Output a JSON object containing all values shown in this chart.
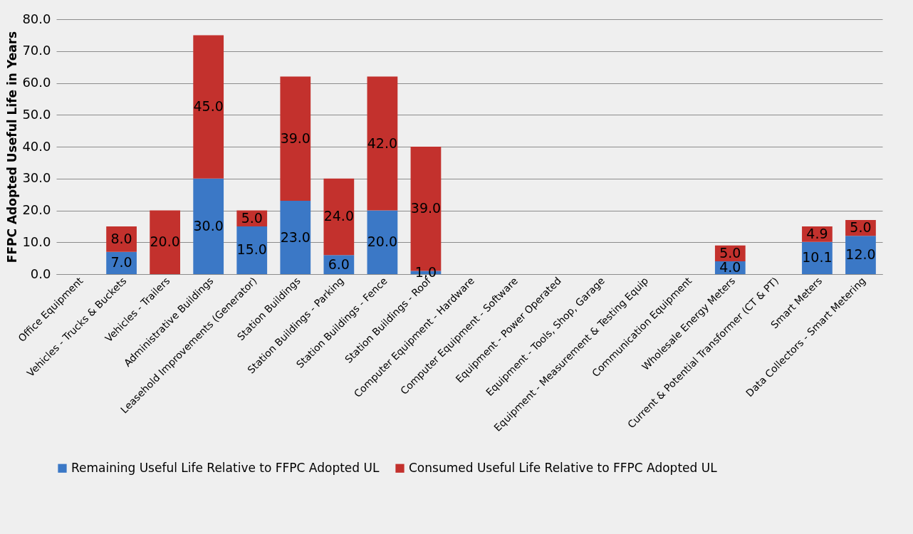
{
  "chart_data": {
    "type": "bar",
    "stacked": true,
    "ylabel": "FFPC Adopted Useful Life in Years",
    "categories": [
      "Office Equipment",
      "Vehicles - Trucks & Buckets",
      "Vehicles - Trailers",
      "Administrative Buildings",
      "Leasehold Improvements (Generator)",
      "Station Buildings",
      "Station Buildings - Parking",
      "Station Buildings - Fence",
      "Station Buildings - Roof",
      "Computer Equipment - Hardware",
      "Computer Equipment - Software",
      "Equipment - Power Operated",
      "Equipment - Tools, Shop, Garage",
      "Equipment - Measurement & Testing Equip",
      "Communication Equipment",
      "Wholesale Energy Meters",
      "Current & Potential Transformer (CT & PT)",
      "Smart Meters",
      "Data Collectors - Smart Metering"
    ],
    "series": [
      {
        "name": "Remaining Useful Life Relative to FFPC Adopted UL",
        "color": "#3b78c6",
        "values": [
          null,
          7.0,
          null,
          30.0,
          15.0,
          23.0,
          6.0,
          20.0,
          1.0,
          null,
          null,
          null,
          null,
          null,
          null,
          4.0,
          null,
          10.1,
          12.0
        ],
        "value_labels": [
          null,
          "7.0",
          null,
          "30.0",
          "15.0",
          "23.0",
          "6.0",
          "20.0",
          "1.0",
          null,
          null,
          null,
          null,
          null,
          null,
          "4.0",
          null,
          "10.1",
          "12.0"
        ]
      },
      {
        "name": "Consumed Useful Life Relative to FFPC Adopted UL",
        "color": "#c3312d",
        "values": [
          null,
          8.0,
          20.0,
          45.0,
          5.0,
          39.0,
          24.0,
          42.0,
          39.0,
          null,
          null,
          null,
          null,
          null,
          null,
          5.0,
          null,
          4.9,
          5.0
        ],
        "value_labels": [
          null,
          "8.0",
          "20.0",
          "45.0",
          "5.0",
          "39.0",
          "24.0",
          "42.0",
          "39.0",
          null,
          null,
          null,
          null,
          null,
          null,
          "5.0",
          null,
          "4.9",
          "5.0"
        ]
      }
    ],
    "ylim": [
      0,
      80
    ],
    "yticks": [
      {
        "value": 0,
        "label": "0.0"
      },
      {
        "value": 10,
        "label": "10.0"
      },
      {
        "value": 20,
        "label": "20.0"
      },
      {
        "value": 30,
        "label": "30.0"
      },
      {
        "value": 40,
        "label": "40.0"
      },
      {
        "value": 50,
        "label": "50.0"
      },
      {
        "value": 60,
        "label": "60.0"
      },
      {
        "value": 70,
        "label": "70.0"
      },
      {
        "value": 80,
        "label": "80.0"
      }
    ],
    "grid": "y",
    "legend": "bottom"
  }
}
